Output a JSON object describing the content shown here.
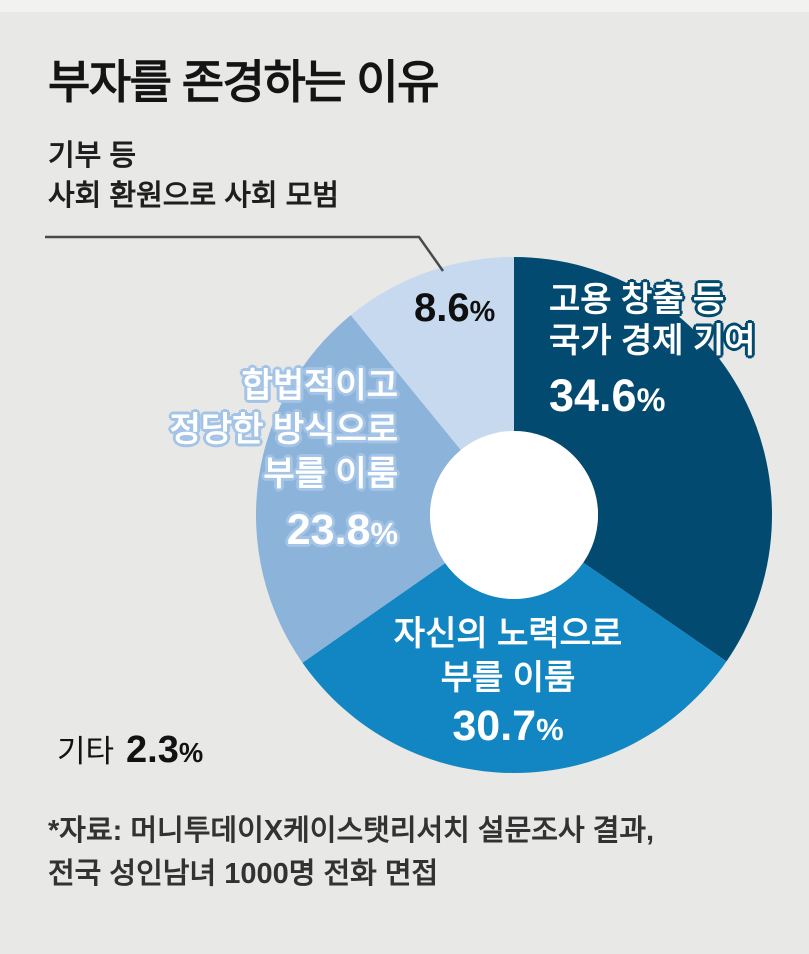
{
  "title": "부자를 존경하는 이유",
  "percent": "%",
  "callout": {
    "line1": "기부 등",
    "line2": "사회 환원으로 사회 모범"
  },
  "labels": {
    "donation": {
      "value": "8.6"
    },
    "employment": {
      "line1": "고용 창출 등",
      "line2": "국가 경제 기여",
      "value": "34.6"
    },
    "legal": {
      "line1": "합법적이고",
      "line2": "정당한 방식으로",
      "line3": "부를 이룸",
      "value": "23.8"
    },
    "effort": {
      "line1": "자신의 노력으로",
      "line2": "부를 이룸",
      "value": "30.7"
    },
    "etc": {
      "label": "기타",
      "value": "2.3"
    }
  },
  "footer": {
    "line1": "*자료: 머니투데이X케이스탯리서치 설문조사 결과,",
    "line2": "전국 성인남녀 1000명 전화 면접"
  },
  "colors": {
    "background": "#e8e8e7",
    "donut_hole": "#ffffff",
    "leader_line": "#4a4a4a",
    "title_text": "#141414",
    "white_label_text": "#ffffff",
    "employment_outline": "#034a70",
    "legal_outline": "#a3c4e6"
  },
  "chart_data": {
    "type": "pie",
    "donut": true,
    "title": "부자를 존경하는 이유",
    "unit": "%",
    "start_angle_deg": 0,
    "direction": "clockwise",
    "legend": false,
    "label_position": "inside",
    "slices": [
      {
        "id": "employment",
        "label": "고용 창출 등 국가 경제 기여",
        "value": 34.6,
        "color": "#034a70"
      },
      {
        "id": "effort",
        "label": "자신의 노력으로 부를 이룸",
        "value": 30.7,
        "color": "#1186c3"
      },
      {
        "id": "legal",
        "label": "합법적이고 정당한 방식으로 부를 이룸",
        "value": 23.8,
        "color": "#8cb3d9"
      },
      {
        "id": "donation",
        "label": "기부 등 사회 환원으로 사회 모범",
        "value": 8.6,
        "color": "#c6d9ef"
      },
      {
        "id": "etc",
        "label": "기타",
        "value": 2.3,
        "color": "#c6d9ef"
      }
    ]
  }
}
